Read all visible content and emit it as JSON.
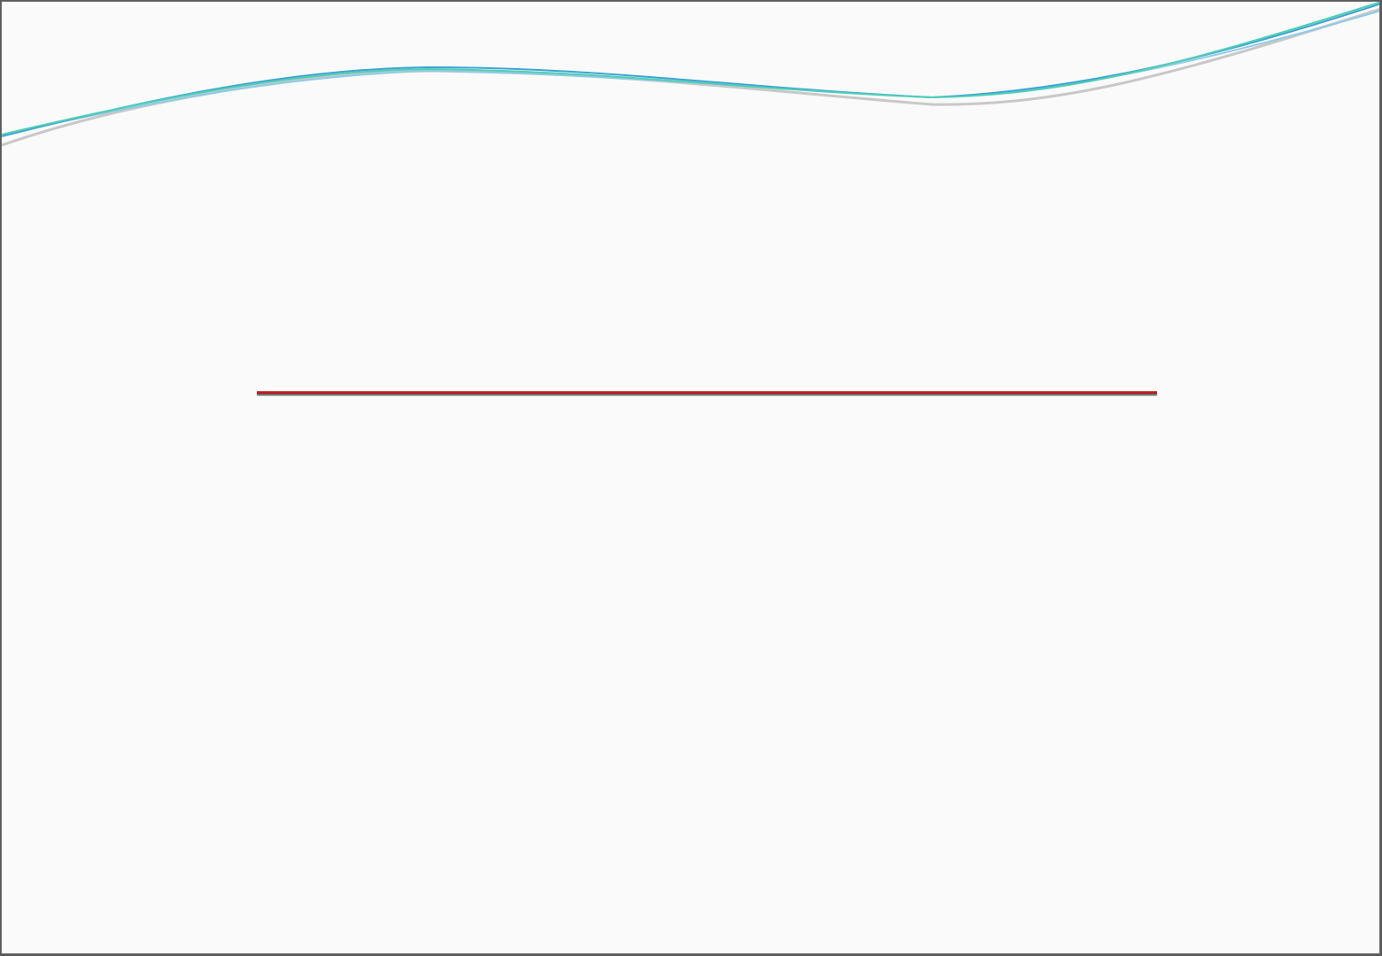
{
  "slide": {
    "background_color": "#fafafa",
    "rule_color": "#b22222",
    "wave_colors": [
      "#4fcfb4",
      "#3fa3d6",
      "#8fcbe6",
      "#c8c8c8"
    ]
  }
}
